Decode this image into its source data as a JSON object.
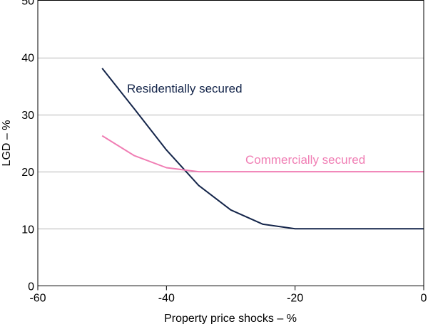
{
  "chart_data": {
    "type": "line",
    "xlabel": "Property price shocks – %",
    "ylabel": "LGD – %",
    "xlim": [
      -60,
      0
    ],
    "ylim": [
      0,
      50
    ],
    "xticks": [
      -60,
      -40,
      -20,
      0
    ],
    "yticks": [
      0,
      10,
      20,
      30,
      40,
      50
    ],
    "grid": true,
    "series": [
      {
        "name": "Residentially secured",
        "color": "#14254a",
        "x": [
          -50,
          -45,
          -40,
          -35,
          -30,
          -25,
          -20,
          -15,
          -10,
          -5,
          0
        ],
        "y": [
          38.1,
          31,
          23.8,
          17.6,
          13.3,
          10.8,
          10,
          10,
          10,
          10,
          10
        ]
      },
      {
        "name": "Commercially secured",
        "color": "#f07eb4",
        "x": [
          -50,
          -45,
          -40,
          -35,
          -30,
          -25,
          -20,
          -15,
          -10,
          -5,
          0
        ],
        "y": [
          26.3,
          22.8,
          20.7,
          20,
          20,
          20,
          20,
          20,
          20,
          20,
          20
        ]
      }
    ]
  }
}
